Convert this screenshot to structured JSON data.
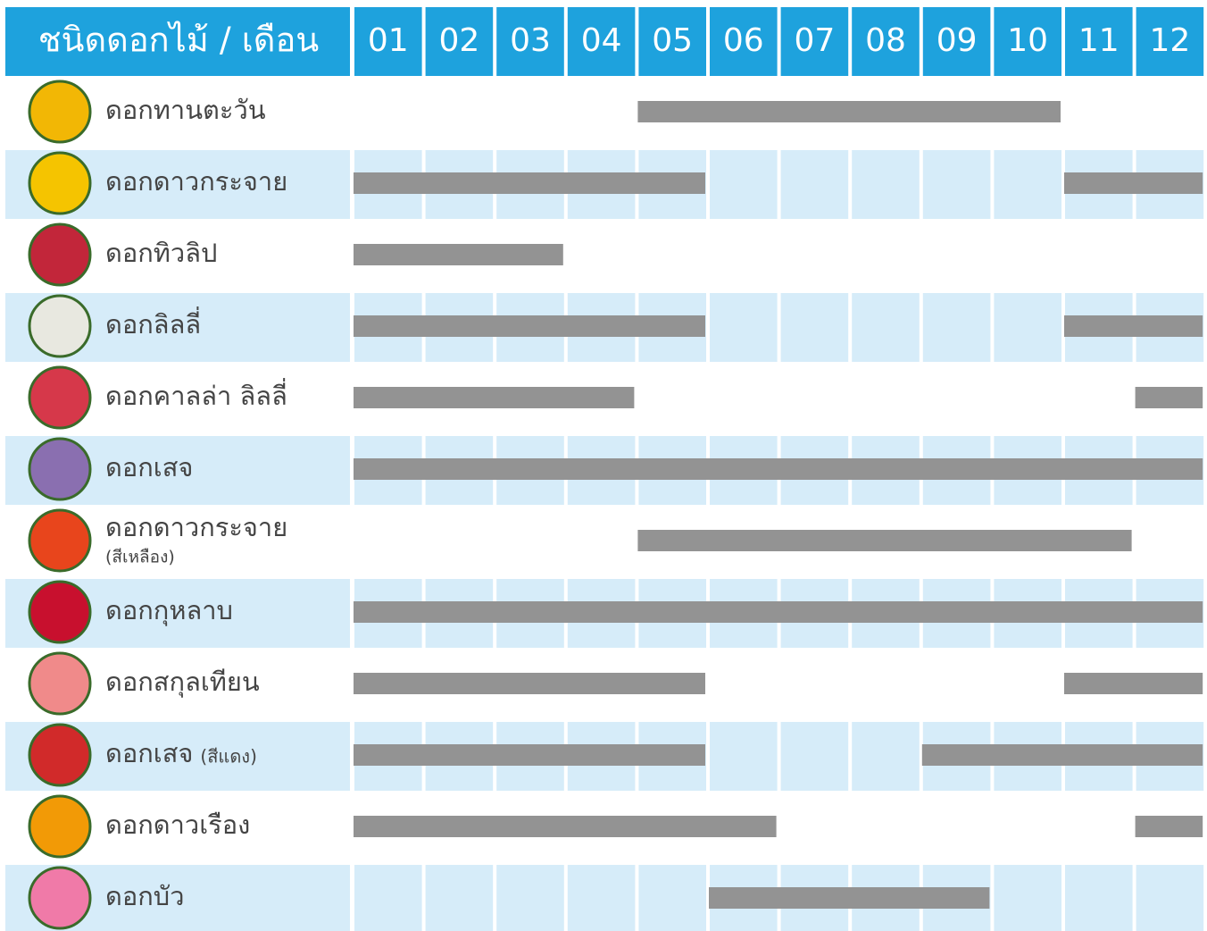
{
  "header": {
    "title": "ชนิดดอกไม้ / เดือน",
    "months": [
      "01",
      "02",
      "03",
      "04",
      "05",
      "06",
      "07",
      "08",
      "09",
      "10",
      "11",
      "12"
    ]
  },
  "rows": [
    {
      "name": "ดอกทานตะวัน",
      "bloom": [
        [
          5,
          10
        ]
      ]
    },
    {
      "name": "ดอกดาวกระจาย",
      "bloom": [
        [
          1,
          5
        ],
        [
          11,
          12
        ]
      ]
    },
    {
      "name": "ดอกทิวลิป",
      "bloom": [
        [
          1,
          3
        ]
      ]
    },
    {
      "name": "ดอกลิลลี่",
      "bloom": [
        [
          1,
          5
        ],
        [
          11,
          12
        ]
      ]
    },
    {
      "name": "ดอกคาลล่า ลิลลี่",
      "bloom": [
        [
          1,
          4
        ],
        [
          12,
          12
        ]
      ]
    },
    {
      "name": "ดอกเสจ",
      "bloom": [
        [
          1,
          12
        ]
      ]
    },
    {
      "name": "ดอกดาวกระจาย",
      "note": "(สีเหลือง)",
      "bloom": [
        [
          5,
          11
        ]
      ]
    },
    {
      "name": "ดอกกุหลาบ",
      "bloom": [
        [
          1,
          12
        ]
      ]
    },
    {
      "name": "ดอกสกุลเทียน",
      "bloom": [
        [
          1,
          5
        ],
        [
          11,
          12
        ]
      ]
    },
    {
      "name": "ดอกเสจ",
      "note": "(สีแดง)",
      "bloom": [
        [
          1,
          5
        ],
        [
          9,
          12
        ]
      ]
    },
    {
      "name": "ดอกดาวเรือง",
      "bloom": [
        [
          1,
          6
        ],
        [
          12,
          12
        ]
      ]
    },
    {
      "name": "ดอกบัว",
      "bloom": [
        [
          6,
          9
        ]
      ]
    }
  ]
}
